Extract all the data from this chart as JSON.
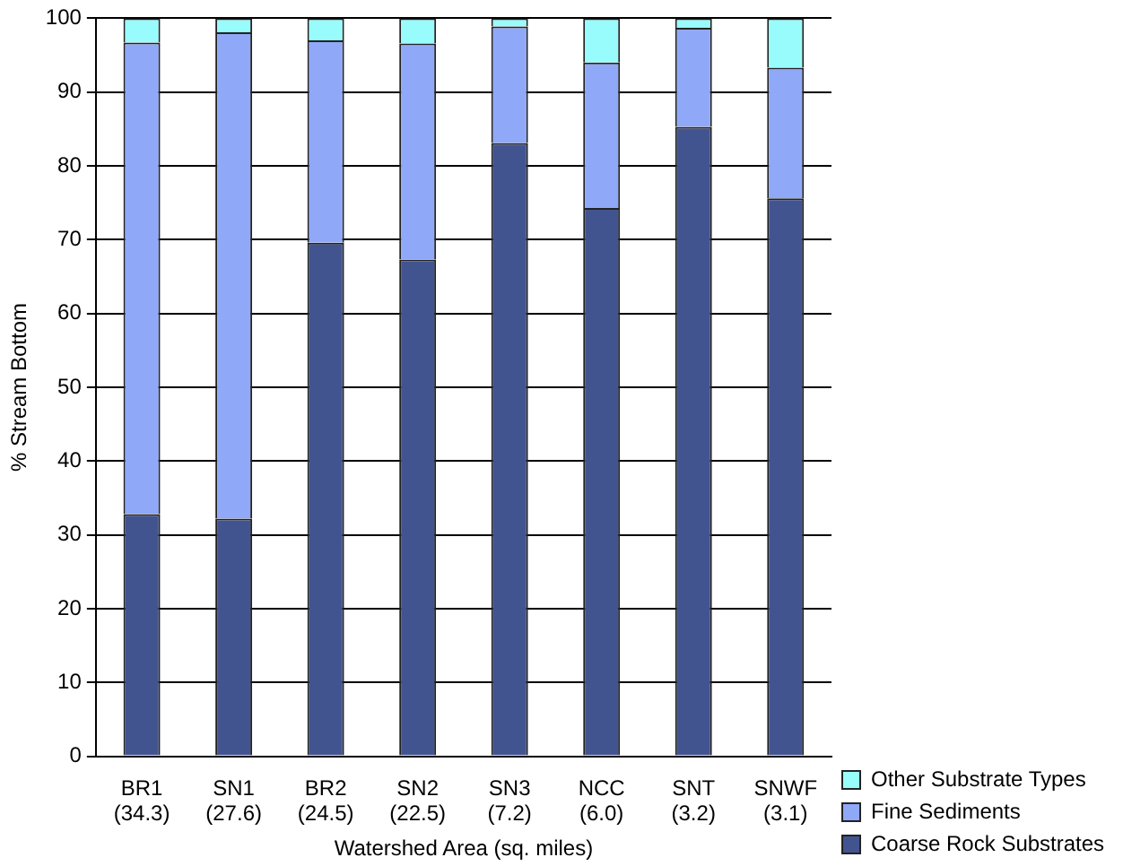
{
  "chart_data": {
    "type": "bar",
    "stacked": true,
    "xlabel": "Watershed Area (sq. miles)",
    "ylabel": "% Stream Bottom",
    "categories": [
      "BR1\n(34.3)",
      "SN1\n(27.6)",
      "BR2\n(24.5)",
      "SN2\n(22.5)",
      "SN3\n(7.2)",
      "NCC\n(6.0)",
      "SNT\n(3.2)",
      "SNWF\n(3.1)"
    ],
    "series": [
      {
        "name": "Coarse Rock Substrates",
        "color": "#425490",
        "values": [
          32.8,
          32.2,
          69.6,
          67.3,
          83.1,
          74.3,
          85.3,
          75.6
        ]
      },
      {
        "name": "Fine Sediments",
        "color": "#90a8f8",
        "values": [
          63.9,
          65.9,
          27.4,
          29.3,
          15.8,
          19.7,
          13.4,
          17.7
        ]
      },
      {
        "name": "Other Substrate Types",
        "color": "#98fcfc",
        "values": [
          3.3,
          1.9,
          3.0,
          3.4,
          1.1,
          6.0,
          1.3,
          6.7
        ]
      }
    ],
    "ylim": [
      0,
      100
    ],
    "yticks": [
      0,
      10,
      20,
      30,
      40,
      50,
      60,
      70,
      80,
      90,
      100
    ],
    "grid": "y",
    "legend": "bottom right"
  }
}
